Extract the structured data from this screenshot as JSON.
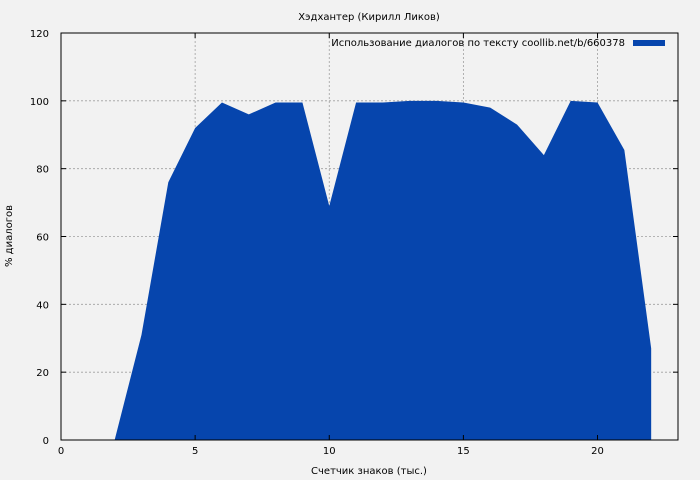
{
  "chart_data": {
    "type": "area",
    "title": "Хэдхантер (Кирилл Ликов)",
    "xlabel": "Счетчик знаков (тыс.)",
    "ylabel": "% диалогов",
    "xlim": [
      0,
      23
    ],
    "ylim": [
      0,
      120
    ],
    "x_ticks": [
      0,
      5,
      10,
      15,
      20
    ],
    "y_ticks": [
      0,
      20,
      40,
      60,
      80,
      100,
      120
    ],
    "grid": true,
    "legend_position": "top-right",
    "series": [
      {
        "name": "Использование диалогов по тексту coollib.net/b/660378",
        "color": "#0645ad",
        "x": [
          2,
          3,
          4,
          5,
          6,
          7,
          8,
          9,
          10,
          11,
          12,
          13,
          14,
          15,
          16,
          17,
          18,
          19,
          20,
          21,
          22
        ],
        "values": [
          0,
          31,
          76,
          92,
          99.5,
          96,
          99.5,
          99.5,
          69,
          99.5,
          99.5,
          100,
          100,
          99.5,
          98,
          93,
          84,
          100,
          99.5,
          85.5,
          27
        ]
      }
    ]
  }
}
